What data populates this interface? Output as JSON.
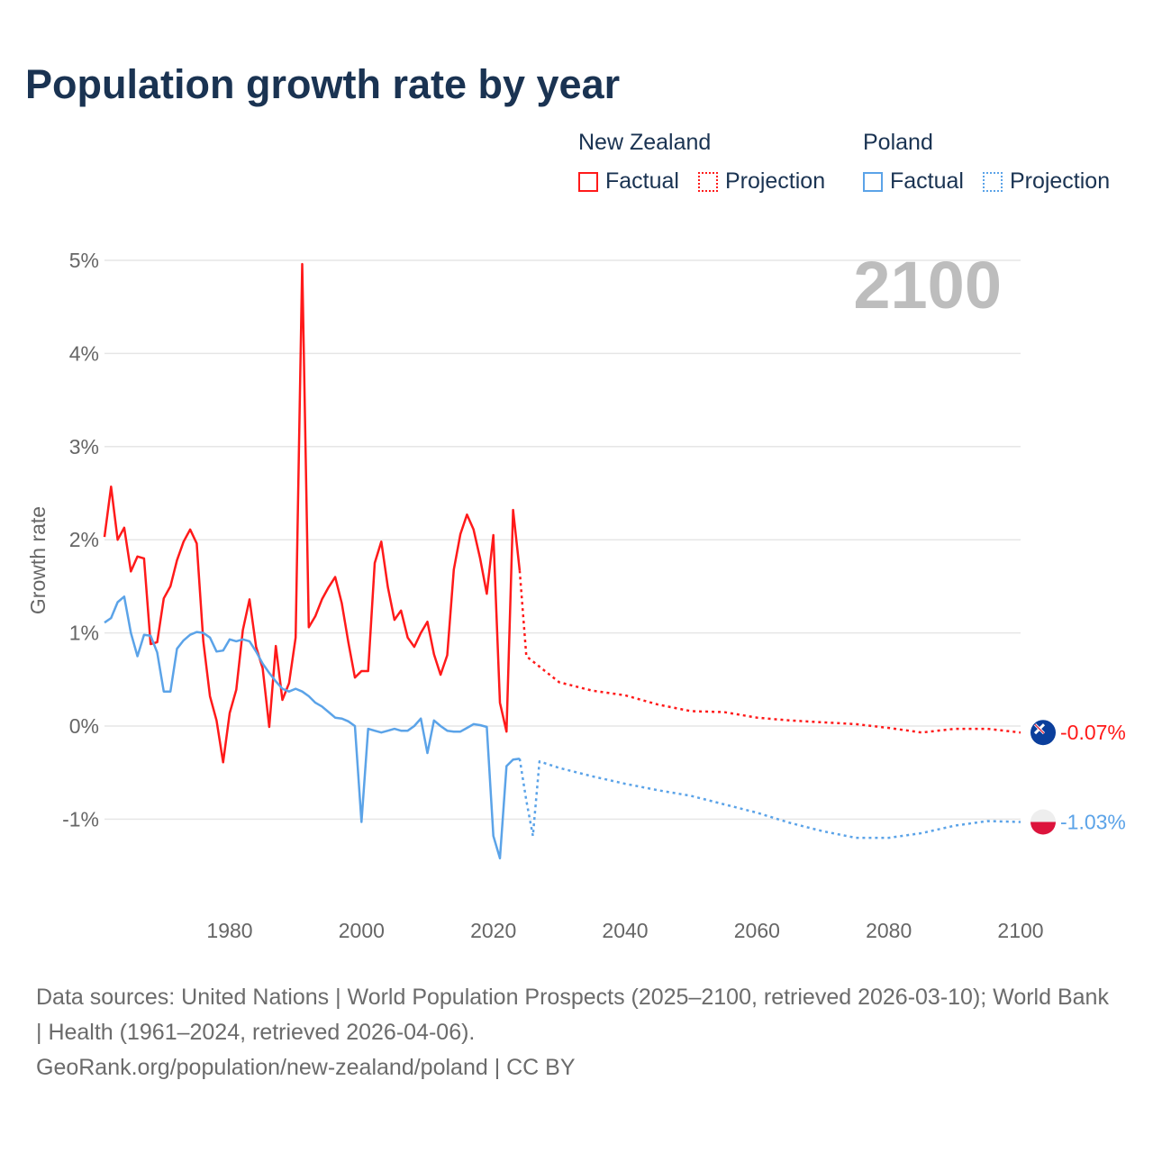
{
  "title": "Population growth rate by year",
  "legend": {
    "groups": [
      {
        "name": "New Zealand",
        "factual": "Factual",
        "projection": "Projection",
        "color": "#ff1a1a"
      },
      {
        "name": "Poland",
        "factual": "Factual",
        "projection": "Projection",
        "color": "#5ba3e8"
      }
    ]
  },
  "chart_data": {
    "type": "line",
    "title": "Population growth rate by year",
    "xlabel": "",
    "ylabel": "Growth rate",
    "xlim": [
      1961,
      2100
    ],
    "ylim": [
      -1.5,
      5
    ],
    "x_ticks": [
      1980,
      2000,
      2020,
      2040,
      2060,
      2080,
      2100
    ],
    "x_tick_labels": [
      "1980",
      "2000",
      "2020",
      "2040",
      "2060",
      "2080",
      "2100"
    ],
    "y_ticks": [
      5,
      4,
      3,
      2,
      1,
      0,
      -1
    ],
    "y_tick_labels": [
      "5%",
      "4%",
      "3%",
      "2%",
      "1%",
      "0%",
      "-1%"
    ],
    "year_label": "2100",
    "grid": true,
    "series": [
      {
        "name": "New Zealand",
        "kind": "factual",
        "color": "#ff1a1a",
        "x": [
          1961,
          1962,
          1963,
          1964,
          1965,
          1966,
          1967,
          1968,
          1969,
          1970,
          1971,
          1972,
          1973,
          1974,
          1975,
          1976,
          1977,
          1978,
          1979,
          1980,
          1981,
          1982,
          1983,
          1984,
          1985,
          1986,
          1987,
          1988,
          1989,
          1990,
          1991,
          1992,
          1993,
          1994,
          1995,
          1996,
          1997,
          1998,
          1999,
          2000,
          2001,
          2002,
          2003,
          2004,
          2005,
          2006,
          2007,
          2008,
          2009,
          2010,
          2011,
          2012,
          2013,
          2014,
          2015,
          2016,
          2017,
          2018,
          2019,
          2020,
          2021,
          2022,
          2023,
          2024
        ],
        "y": [
          2.03,
          2.57,
          2.0,
          2.13,
          1.66,
          1.82,
          1.8,
          0.88,
          0.9,
          1.37,
          1.5,
          1.78,
          1.98,
          2.11,
          1.96,
          0.91,
          0.32,
          0.06,
          -0.39,
          0.14,
          0.39,
          1.03,
          1.36,
          0.85,
          0.62,
          -0.01,
          0.86,
          0.28,
          0.46,
          0.95,
          4.96,
          1.06,
          1.18,
          1.36,
          1.49,
          1.6,
          1.32,
          0.9,
          0.52,
          0.59,
          0.59,
          1.75,
          1.98,
          1.49,
          1.14,
          1.24,
          0.95,
          0.85,
          1.0,
          1.12,
          0.77,
          0.55,
          0.76,
          1.68,
          2.06,
          2.27,
          2.11,
          1.8,
          1.42,
          2.05,
          0.25,
          -0.06,
          2.32,
          1.67
        ]
      },
      {
        "name": "New Zealand",
        "kind": "projection",
        "color": "#ff1a1a",
        "x": [
          2024,
          2025,
          2030,
          2035,
          2040,
          2045,
          2050,
          2055,
          2060,
          2065,
          2070,
          2075,
          2080,
          2085,
          2090,
          2095,
          2100
        ],
        "y": [
          1.67,
          0.75,
          0.47,
          0.38,
          0.33,
          0.23,
          0.16,
          0.15,
          0.09,
          0.06,
          0.04,
          0.02,
          -0.02,
          -0.07,
          -0.03,
          -0.03,
          -0.07
        ]
      },
      {
        "name": "Poland",
        "kind": "factual",
        "color": "#5ba3e8",
        "x": [
          1961,
          1962,
          1963,
          1964,
          1965,
          1966,
          1967,
          1968,
          1969,
          1970,
          1971,
          1972,
          1973,
          1974,
          1975,
          1976,
          1977,
          1978,
          1979,
          1980,
          1981,
          1982,
          1983,
          1984,
          1985,
          1986,
          1987,
          1988,
          1989,
          1990,
          1991,
          1992,
          1993,
          1994,
          1995,
          1996,
          1997,
          1998,
          1999,
          2000,
          2001,
          2002,
          2003,
          2004,
          2005,
          2006,
          2007,
          2008,
          2009,
          2010,
          2011,
          2012,
          2013,
          2014,
          2015,
          2016,
          2017,
          2018,
          2019,
          2020,
          2021,
          2022,
          2023,
          2024
        ],
        "y": [
          1.11,
          1.16,
          1.33,
          1.39,
          1.0,
          0.75,
          0.98,
          0.97,
          0.79,
          0.37,
          0.37,
          0.83,
          0.92,
          0.98,
          1.01,
          1.0,
          0.95,
          0.8,
          0.81,
          0.93,
          0.91,
          0.93,
          0.91,
          0.8,
          0.67,
          0.57,
          0.48,
          0.4,
          0.37,
          0.4,
          0.37,
          0.32,
          0.25,
          0.21,
          0.15,
          0.09,
          0.08,
          0.05,
          0.0,
          -1.03,
          -0.03,
          -0.05,
          -0.07,
          -0.05,
          -0.03,
          -0.05,
          -0.05,
          0.0,
          0.08,
          -0.29,
          0.06,
          0.0,
          -0.05,
          -0.06,
          -0.06,
          -0.02,
          0.02,
          0.01,
          -0.01,
          -1.18,
          -1.42,
          -0.43,
          -0.36,
          -0.35
        ]
      },
      {
        "name": "Poland",
        "kind": "projection",
        "color": "#5ba3e8",
        "x": [
          2024,
          2025,
          2026,
          2027,
          2030,
          2035,
          2040,
          2045,
          2050,
          2055,
          2060,
          2065,
          2070,
          2075,
          2080,
          2085,
          2090,
          2095,
          2100
        ],
        "y": [
          -0.35,
          -0.8,
          -1.18,
          -0.38,
          -0.45,
          -0.54,
          -0.62,
          -0.69,
          -0.75,
          -0.84,
          -0.93,
          -1.04,
          -1.13,
          -1.2,
          -1.2,
          -1.15,
          -1.07,
          -1.02,
          -1.03
        ]
      }
    ],
    "end_labels": [
      {
        "name": "New Zealand",
        "value": -0.07,
        "label": "-0.07%",
        "color": "#ff1a1a"
      },
      {
        "name": "Poland",
        "value": -1.03,
        "label": "-1.03%",
        "color": "#5ba3e8"
      }
    ]
  },
  "footer": {
    "sources": "Data sources: United Nations | World Population Prospects (2025–2100, retrieved 2026-03-10); World Bank | Health (1961–2024, retrieved 2026-04-06).",
    "link": "GeoRank.org/population/new-zealand/poland | CC BY"
  }
}
